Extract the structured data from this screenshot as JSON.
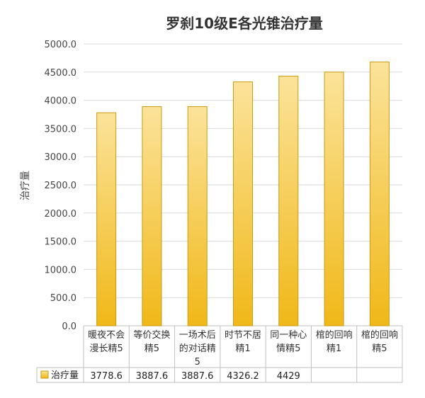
{
  "chart_data": {
    "type": "bar",
    "title": "罗刹10级E各光锥治疗量",
    "ylabel": "治疗量",
    "xlabel": "",
    "ylim": [
      0,
      5000
    ],
    "yticks": [
      "0.0",
      "500.0",
      "1000.0",
      "1500.0",
      "2000.0",
      "2500.0",
      "3000.0",
      "3500.0",
      "4000.0",
      "4500.0",
      "5000.0"
    ],
    "grid": true,
    "categories": [
      [
        "暖夜不会",
        "漫长精5"
      ],
      [
        "等价交换",
        "精5"
      ],
      [
        "一场术后",
        "的对话精",
        "5"
      ],
      [
        "时节不居",
        "精1"
      ],
      [
        "同一种心",
        "情精5"
      ],
      [
        "棺的回响",
        "精1"
      ],
      [
        "棺的回响",
        "精5"
      ]
    ],
    "series": [
      {
        "name": "治疗量",
        "values": [
          3778.6,
          3887.6,
          3887.6,
          4326.2,
          4429,
          4500,
          4680
        ]
      }
    ],
    "table_values": [
      "3778.6",
      "3887.6",
      "3887.6",
      "4326.2",
      "4429"
    ],
    "bar_color_top": "#fbe39a",
    "bar_color_bottom": "#f0b818",
    "bar_stroke": "#c99a12"
  }
}
